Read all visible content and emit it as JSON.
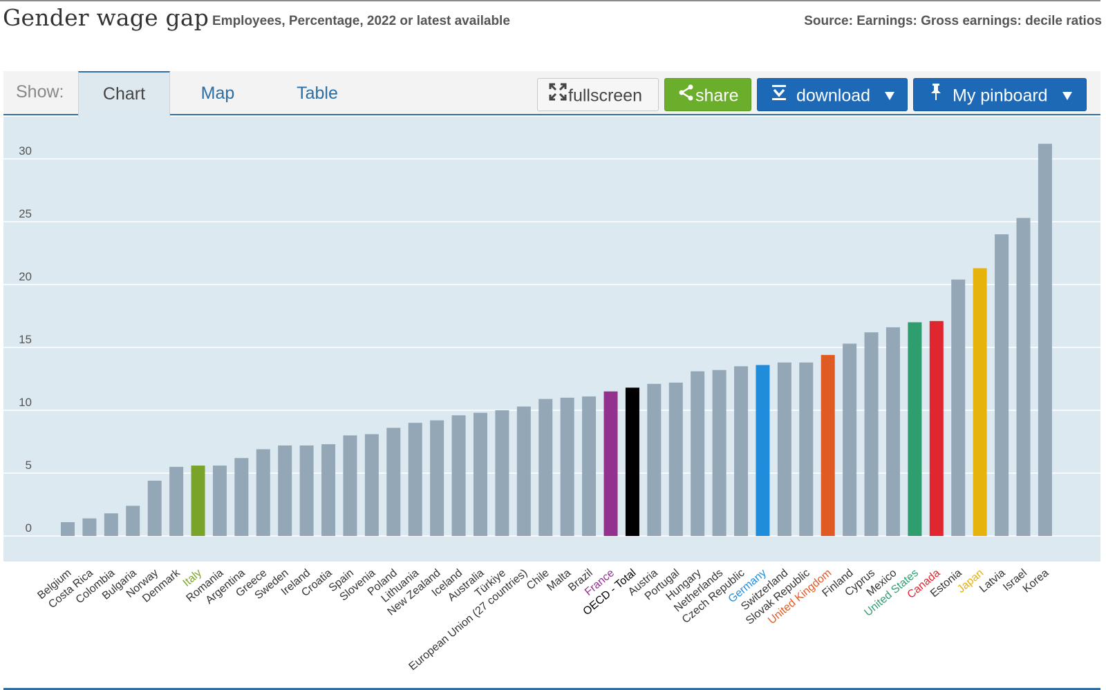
{
  "header": {
    "title": "Gender wage gap",
    "subtitle": "Employees, Percentage, 2022 or latest available",
    "source": "Source: Earnings: Gross earnings: decile ratios"
  },
  "toolbar": {
    "show_label": "Show:",
    "tabs": [
      {
        "label": "Chart",
        "active": true
      },
      {
        "label": "Map",
        "active": false
      },
      {
        "label": "Table",
        "active": false
      }
    ],
    "fullscreen_label": "fullscreen",
    "share_label": "share",
    "download_label": "download",
    "pinboard_label": "My pinboard",
    "colors": {
      "share": "#6aae2c",
      "download": "#1d69b5",
      "pinboard": "#1d69b5"
    }
  },
  "chart_data": {
    "type": "bar",
    "title": "Gender wage gap",
    "ylim": [
      0,
      33
    ],
    "yticks": [
      0,
      5,
      10,
      15,
      20,
      25,
      30
    ],
    "grid": true,
    "default_color": "#93a7b6",
    "plot_background": "#dde9f0",
    "categories": [
      "Belgium",
      "Costa Rica",
      "Colombia",
      "Bulgaria",
      "Norway",
      "Denmark",
      "Italy",
      "Romania",
      "Argentina",
      "Greece",
      "Sweden",
      "Ireland",
      "Croatia",
      "Spain",
      "Slovenia",
      "Poland",
      "Lithuania",
      "New Zealand",
      "Iceland",
      "Australia",
      "Türkiye",
      "European Union (27 countries)",
      "Chile",
      "Malta",
      "Brazil",
      "France",
      "OECD - Total",
      "Austria",
      "Portugal",
      "Hungary",
      "Netherlands",
      "Czech Republic",
      "Germany",
      "Switzerland",
      "Slovak Republic",
      "United Kingdom",
      "Finland",
      "Cyprus",
      "Mexico",
      "United States",
      "Canada",
      "Estonia",
      "Japan",
      "Latvia",
      "Israel",
      "Korea"
    ],
    "values": [
      1.1,
      1.4,
      1.8,
      2.4,
      4.4,
      5.5,
      5.6,
      5.6,
      6.2,
      6.9,
      7.2,
      7.2,
      7.3,
      8.0,
      8.1,
      8.6,
      9.0,
      9.2,
      9.6,
      9.8,
      10.0,
      10.3,
      10.9,
      11.0,
      11.1,
      11.5,
      11.8,
      12.1,
      12.2,
      13.1,
      13.2,
      13.5,
      13.6,
      13.8,
      13.8,
      14.4,
      15.3,
      16.2,
      16.6,
      17.0,
      17.1,
      20.4,
      21.3,
      24.0,
      25.3,
      31.2
    ],
    "highlights": {
      "Italy": "#7aa32a",
      "France": "#93328e",
      "OECD - Total": "#000000",
      "Germany": "#1f8ddb",
      "United Kingdom": "#e05a24",
      "United States": "#2f9e6e",
      "Canada": "#e0262f",
      "Japan": "#e6b20c"
    }
  }
}
